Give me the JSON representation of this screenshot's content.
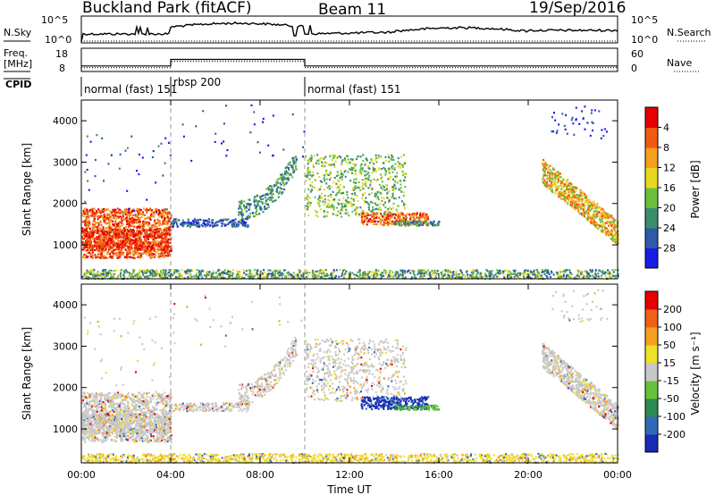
{
  "header": {
    "station": "Buckland Park (fitACF)",
    "beam": "Beam 11",
    "date": "19/Sep/2016"
  },
  "summary_panels": {
    "nsky_label": "N.Sky",
    "nsearch_label": "N.Search",
    "noise_ticks": [
      "10^5",
      "10^0"
    ],
    "freq_label_line1": "Freq.",
    "freq_label_line2": "[MHz]",
    "freq_ticks": [
      "18",
      "8"
    ],
    "nave_label": "Nave",
    "nave_ticks": [
      "60",
      "0"
    ],
    "cpid_label": "CPID",
    "cpid_segments": [
      {
        "label": "normal (fast) 151",
        "start_hour": 0,
        "end_hour": 4
      },
      {
        "label": "rbsp 200",
        "start_hour": 4,
        "end_hour": 10
      },
      {
        "label": "normal (fast) 151",
        "start_hour": 10,
        "end_hour": 24
      }
    ]
  },
  "chart_data": [
    {
      "type": "heatmap",
      "name": "power",
      "ylabel": "Slant Range [km]",
      "ylim": [
        180,
        4500
      ],
      "yticks": [
        "1000",
        "2000",
        "3000",
        "4000"
      ],
      "xlim": [
        0,
        24
      ],
      "colorbar_label": "Power [dB]",
      "colorbar_ticks": [
        "4",
        "8",
        "12",
        "16",
        "20",
        "24",
        "28"
      ],
      "colors": [
        "#1a1ae6",
        "#2e5aa8",
        "#3c8c6e",
        "#6cbf3c",
        "#e8d81e",
        "#f5a01e",
        "#f05a14",
        "#e60000"
      ]
    },
    {
      "type": "heatmap",
      "name": "velocity",
      "ylabel": "Slant Range [km]",
      "ylim": [
        180,
        4500
      ],
      "yticks": [
        "1000",
        "2000",
        "3000",
        "4000"
      ],
      "xlim": [
        0,
        24
      ],
      "xlabel": "Time UT",
      "xticks": [
        "00:00",
        "04:00",
        "08:00",
        "12:00",
        "16:00",
        "20:00",
        "00:00"
      ],
      "colorbar_label": "Velocity [m s⁻¹]",
      "colorbar_ticks": [
        "200",
        "100",
        "50",
        "15",
        "-15",
        "-50",
        "-100",
        "-200"
      ],
      "colors": [
        "#1a2ab4",
        "#2e6ab8",
        "#2a8a52",
        "#66c23a",
        "#c8c8c8",
        "#f0e02a",
        "#f5a020",
        "#f06018",
        "#e60000"
      ]
    }
  ]
}
